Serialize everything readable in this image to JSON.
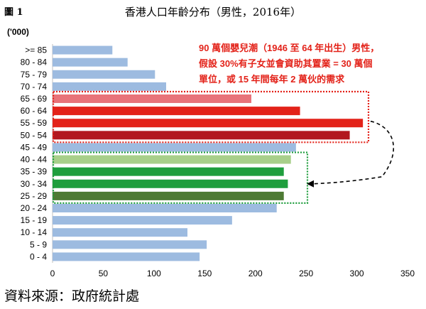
{
  "figure": {
    "label": "圖 1",
    "title": "香港人口年齡分布（男性，2016年）",
    "unit": "('000)",
    "source": "資料來源：政府統計處"
  },
  "annotation": {
    "lines": [
      "90 萬個嬰兒潮（1946 至 64 年出生）男性，",
      "假設 30%有子女並會資助其置業 = 30 萬個",
      "單位，或 15 年間每年 2 萬伙的需求"
    ],
    "color": "#e32219"
  },
  "colors": {
    "default_bar": "#9dbbe0",
    "red_box": "#e32219",
    "green_box": "#1f9e3d",
    "arrow": "#000000"
  },
  "chart_data": {
    "type": "bar",
    "orientation": "horizontal",
    "categories": [
      ">= 85",
      "80 - 84",
      "75 - 79",
      "70 - 74",
      "65 - 69",
      "60 - 64",
      "55 - 59",
      "50 - 54",
      "45 - 49",
      "40 - 44",
      "35 - 39",
      "30 - 34",
      "25 - 29",
      "20 - 24",
      "15 - 19",
      "10 - 14",
      "5 - 9",
      "0 - 4"
    ],
    "values": [
      59,
      74,
      101,
      112,
      196,
      244,
      306,
      293,
      240,
      235,
      228,
      232,
      228,
      221,
      177,
      133,
      152,
      145
    ],
    "bar_colors": [
      "#9dbbe0",
      "#9dbbe0",
      "#9dbbe0",
      "#9dbbe0",
      "#e8737a",
      "#e32219",
      "#e32219",
      "#b2171f",
      "#9dbbe0",
      "#a8cf8a",
      "#1f9e3d",
      "#1f9e3d",
      "#4e7a34",
      "#9dbbe0",
      "#9dbbe0",
      "#9dbbe0",
      "#9dbbe0",
      "#9dbbe0"
    ],
    "xlim": [
      0,
      350
    ],
    "xticks": [
      0,
      50,
      100,
      150,
      200,
      250,
      300,
      350
    ],
    "xlabel": "",
    "ylabel": "",
    "grid": false,
    "highlight_groups": [
      {
        "name": "baby-boomers",
        "categories": [
          "65 - 69",
          "60 - 64",
          "55 - 59",
          "50 - 54"
        ],
        "style": "red dotted box"
      },
      {
        "name": "children",
        "categories": [
          "40 - 44",
          "35 - 39",
          "30 - 34",
          "25 - 29"
        ],
        "style": "green dotted box"
      }
    ]
  }
}
